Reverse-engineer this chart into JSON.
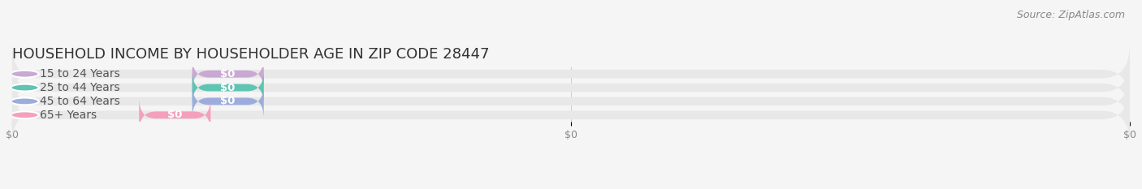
{
  "title": "HOUSEHOLD INCOME BY HOUSEHOLDER AGE IN ZIP CODE 28447",
  "source": "Source: ZipAtlas.com",
  "categories": [
    "15 to 24 Years",
    "25 to 44 Years",
    "45 to 64 Years",
    "65+ Years"
  ],
  "values": [
    0,
    0,
    0,
    0
  ],
  "bar_colors": [
    "#c9a8d4",
    "#5ec4b4",
    "#9cacdc",
    "#f4a0bc"
  ],
  "bar_bg_color": "#e8e8e8",
  "value_labels": [
    "$0",
    "$0",
    "$0",
    "$0"
  ],
  "x_tick_labels": [
    "$0",
    "$0",
    "$0"
  ],
  "background_color": "#f5f5f5",
  "title_fontsize": 13,
  "source_fontsize": 9,
  "bar_label_fontsize": 10,
  "tick_fontsize": 9,
  "bar_height": 0.62,
  "n_bars": 4
}
